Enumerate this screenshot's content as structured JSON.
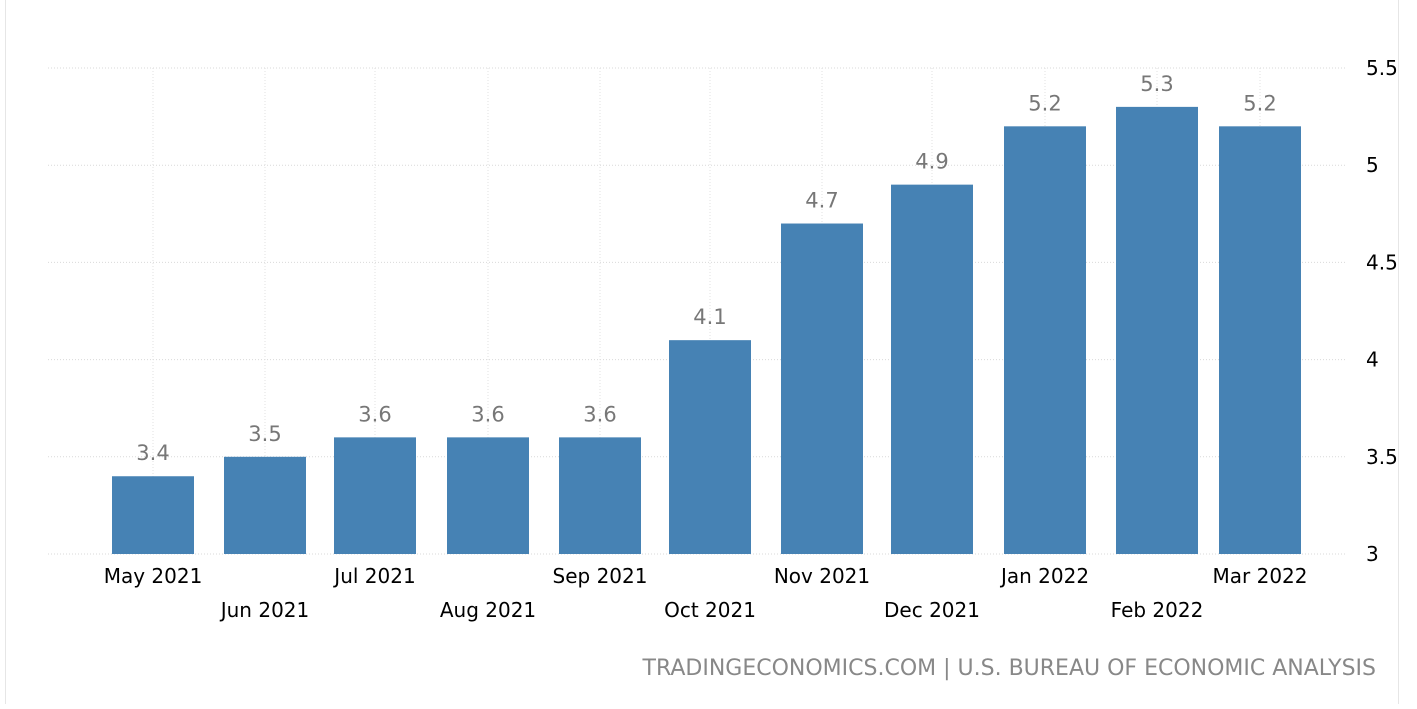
{
  "chart_data": {
    "type": "bar",
    "categories": [
      "May 2021",
      "Jun 2021",
      "Jul 2021",
      "Aug 2021",
      "Sep 2021",
      "Oct 2021",
      "Nov 2021",
      "Dec 2021",
      "Jan 2022",
      "Feb 2022",
      "Mar 2022"
    ],
    "values": [
      3.4,
      3.5,
      3.6,
      3.6,
      3.6,
      4.1,
      4.7,
      4.9,
      5.2,
      5.3,
      5.2
    ],
    "data_labels": [
      "3.4",
      "3.5",
      "3.6",
      "3.6",
      "3.6",
      "4.1",
      "4.7",
      "4.9",
      "5.2",
      "5.3",
      "5.2"
    ],
    "y_ticks": [
      "3",
      "3.5",
      "4",
      "4.5",
      "5",
      "5.5"
    ],
    "ylim": [
      3,
      5.5
    ],
    "y_axis_side": "right",
    "grid": true,
    "bar_color": "#4682b4",
    "title": "",
    "xlabel": "",
    "ylabel": ""
  },
  "source": "TRADINGECONOMICS.COM | U.S. BUREAU OF ECONOMIC ANALYSIS"
}
